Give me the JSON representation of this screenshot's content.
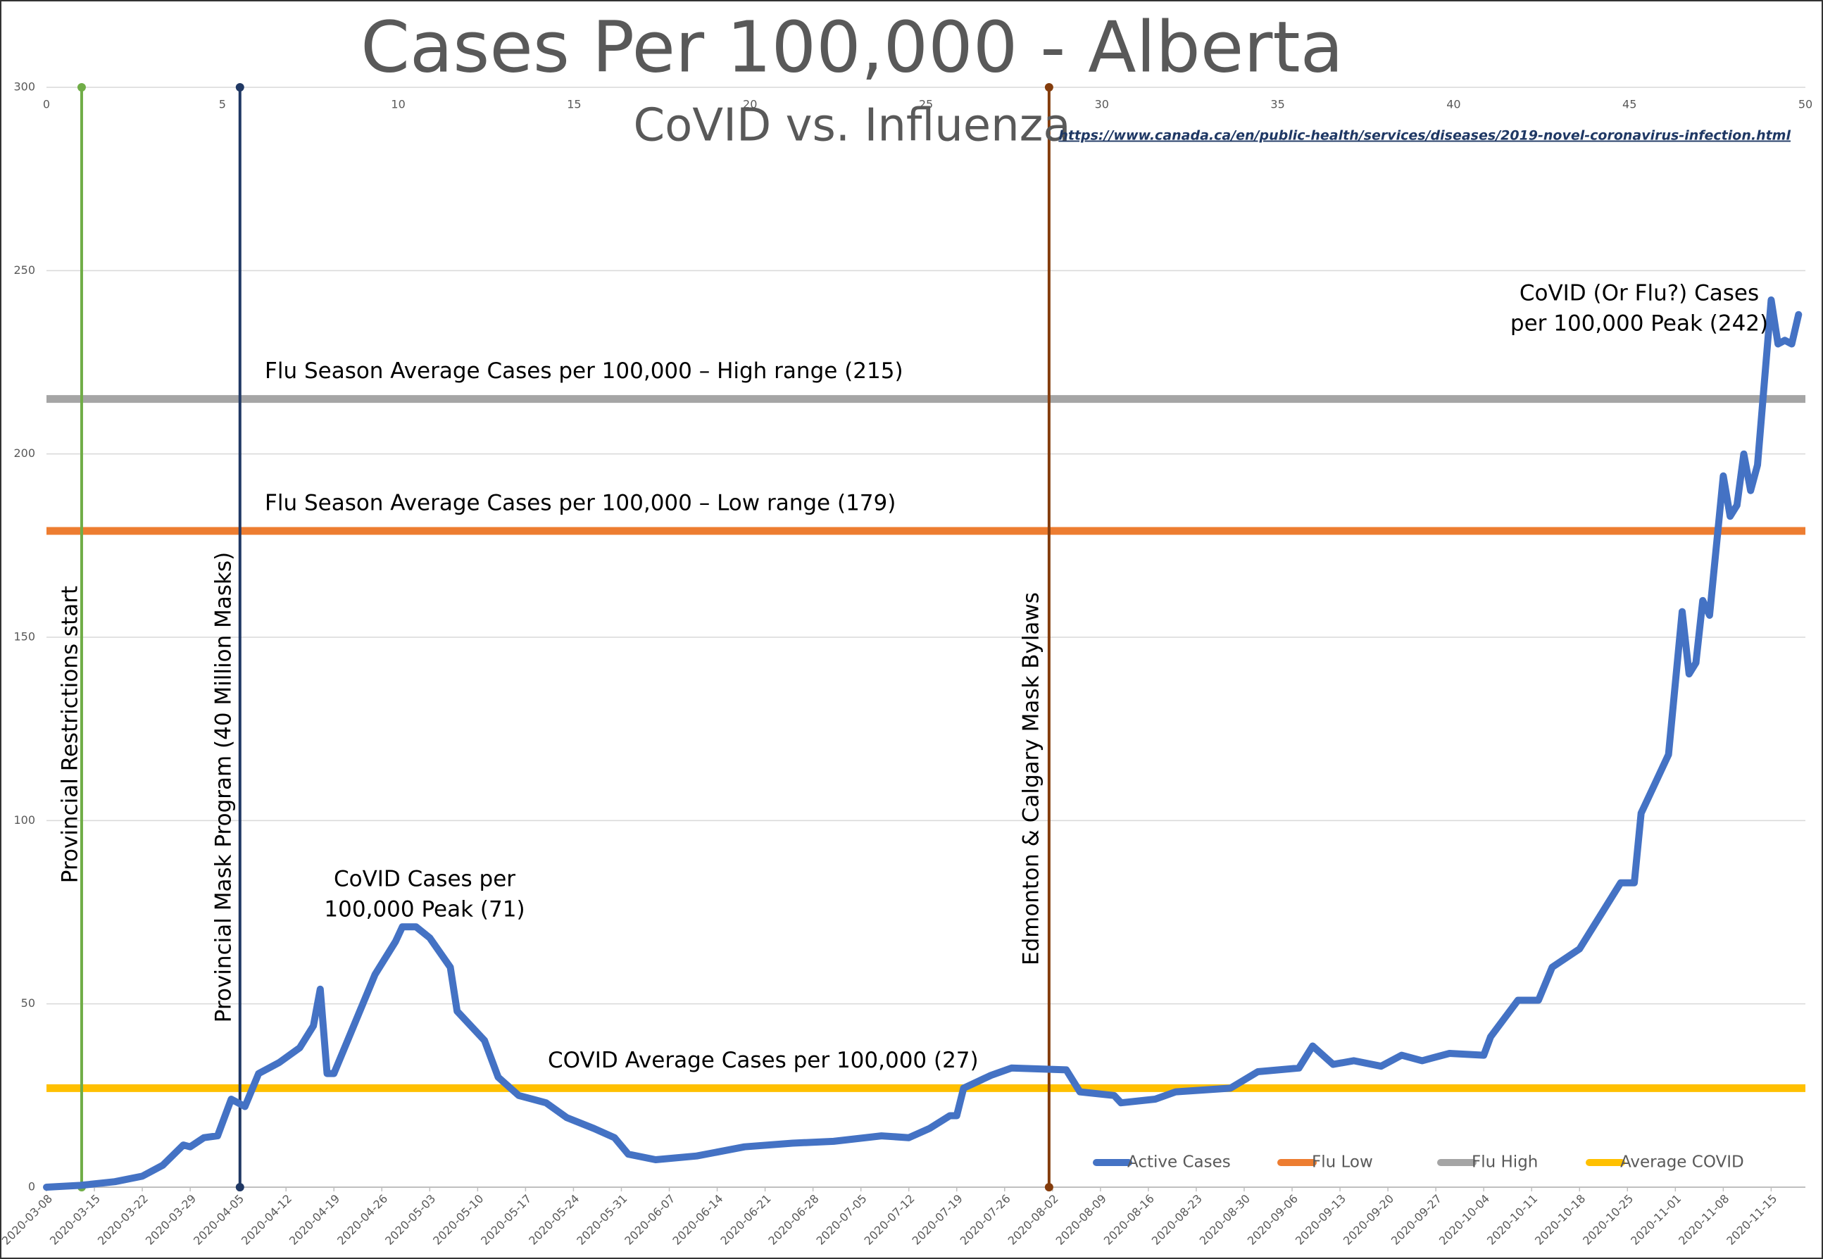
{
  "chart_data": {
    "type": "line",
    "title": "Cases Per 100,000 - Alberta",
    "subtitle": "CoVID vs. Influenza",
    "source": "https://www.canada.ca/en/public-health/services/diseases/2019-novel-coronavirus-infection.html",
    "x": [
      "2020-03-08",
      "2020-03-13",
      "2020-03-18",
      "2020-03-22",
      "2020-03-25",
      "2020-03-28",
      "2020-03-29",
      "2020-03-31",
      "2020-04-02",
      "2020-04-04",
      "2020-04-06",
      "2020-04-08",
      "2020-04-11",
      "2020-04-14",
      "2020-04-16",
      "2020-04-17",
      "2020-04-18",
      "2020-04-19",
      "2020-04-21",
      "2020-04-25",
      "2020-04-28",
      "2020-04-29",
      "2020-05-01",
      "2020-05-03",
      "2020-05-06",
      "2020-05-07",
      "2020-05-11",
      "2020-05-13",
      "2020-05-16",
      "2020-05-20",
      "2020-05-23",
      "2020-05-27",
      "2020-05-30",
      "2020-06-01",
      "2020-06-05",
      "2020-06-11",
      "2020-06-18",
      "2020-06-25",
      "2020-07-01",
      "2020-07-08",
      "2020-07-12",
      "2020-07-15",
      "2020-07-18",
      "2020-07-19",
      "2020-07-20",
      "2020-07-24",
      "2020-07-27",
      "2020-08-04",
      "2020-08-06",
      "2020-08-11",
      "2020-08-12",
      "2020-08-17",
      "2020-08-20",
      "2020-08-28",
      "2020-09-01",
      "2020-09-07",
      "2020-09-09",
      "2020-09-12",
      "2020-09-15",
      "2020-09-19",
      "2020-09-22",
      "2020-09-25",
      "2020-09-29",
      "2020-10-04",
      "2020-10-05",
      "2020-10-09",
      "2020-10-12",
      "2020-10-14",
      "2020-10-18",
      "2020-10-20",
      "2020-10-24",
      "2020-10-26",
      "2020-10-27",
      "2020-10-29",
      "2020-10-31",
      "2020-11-02",
      "2020-11-03",
      "2020-11-04",
      "2020-11-05",
      "2020-11-06",
      "2020-11-08",
      "2020-11-09",
      "2020-11-10",
      "2020-11-11",
      "2020-11-12",
      "2020-11-13",
      "2020-11-15",
      "2020-11-16",
      "2020-11-17",
      "2020-11-18",
      "2020-11-19"
    ],
    "series": [
      {
        "name": "Active Cases",
        "color": "#4472c4",
        "values": [
          0,
          0.5,
          1.5,
          3,
          6,
          11.5,
          11,
          13.5,
          14,
          24,
          22,
          31,
          34,
          38,
          44,
          54,
          31,
          31,
          40,
          58,
          67,
          71,
          71,
          68,
          60,
          48,
          40,
          30,
          25,
          23,
          19,
          16,
          13.5,
          9,
          7.5,
          8.5,
          11,
          12,
          12.5,
          14,
          13.5,
          16,
          19.5,
          19.5,
          27,
          30.5,
          32.5,
          32,
          26,
          25,
          23,
          24,
          26,
          27,
          31.5,
          32.5,
          38.5,
          33.5,
          34.5,
          33,
          36,
          34.5,
          36.5,
          36,
          41,
          51,
          51,
          60,
          65,
          71,
          83,
          83,
          102,
          110,
          118,
          157,
          140,
          143,
          160,
          156,
          194,
          183,
          186,
          200,
          190,
          197,
          242,
          230,
          231,
          230,
          238
        ]
      }
    ],
    "reference_lines": [
      {
        "name": "Flu Low",
        "value": 179,
        "color": "#ed7d31",
        "label": "Flu Season Average Cases per 100,000 – Low range (179)"
      },
      {
        "name": "Flu High",
        "value": 215,
        "color": "#a5a5a5",
        "label": "Flu Season Average Cases per 100,000 – High range (215)"
      },
      {
        "name": "Average COVID",
        "value": 27,
        "color": "#ffc000",
        "label": "COVID Average Cases per 100,000 (27)"
      }
    ],
    "event_lines": [
      {
        "x2": 1,
        "color": "#70ad47",
        "label": "Provincial Restrictions start"
      },
      {
        "x2": 5.5,
        "color": "#203864",
        "label": "Provincial Mask Program (40 Million Masks)"
      },
      {
        "x2": 28.5,
        "color": "#843c0c",
        "label": "Edmonton & Calgary Mask Bylaws"
      }
    ],
    "annotations": [
      {
        "text": [
          "CoVID Cases per",
          "100,000 Peak (71)"
        ]
      },
      {
        "text": [
          "CoVID (Or Flu?) Cases",
          "per 100,000 Peak (242)"
        ]
      }
    ],
    "xlim": [
      "2020-03-08",
      "2020-11-20"
    ],
    "xticks": [
      "2020-03-08",
      "2020-03-15",
      "2020-03-22",
      "2020-03-29",
      "2020-04-05",
      "2020-04-12",
      "2020-04-19",
      "2020-04-26",
      "2020-05-03",
      "2020-05-10",
      "2020-05-17",
      "2020-05-24",
      "2020-05-31",
      "2020-06-07",
      "2020-06-14",
      "2020-06-21",
      "2020-06-28",
      "2020-07-05",
      "2020-07-12",
      "2020-07-19",
      "2020-07-26",
      "2020-08-02",
      "2020-08-09",
      "2020-08-16",
      "2020-08-23",
      "2020-08-30",
      "2020-09-06",
      "2020-09-13",
      "2020-09-20",
      "2020-09-27",
      "2020-10-04",
      "2020-10-11",
      "2020-10-18",
      "2020-10-25",
      "2020-11-01",
      "2020-11-08",
      "2020-11-15"
    ],
    "ylim": [
      0,
      300
    ],
    "yticks": [
      0,
      50,
      100,
      150,
      200,
      250,
      300
    ],
    "x2lim": [
      0,
      50
    ],
    "x2ticks": [
      0,
      5,
      10,
      15,
      20,
      25,
      30,
      35,
      40,
      45,
      50
    ],
    "grid": true,
    "legend": "bottom-right"
  }
}
